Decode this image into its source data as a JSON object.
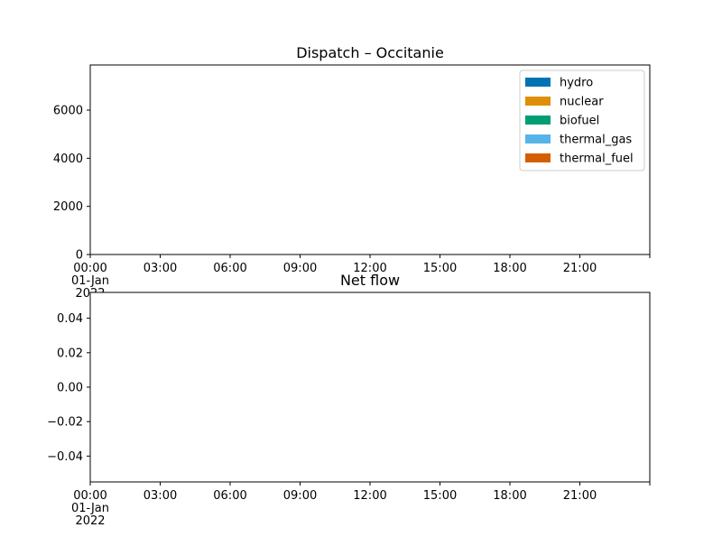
{
  "chart_data": [
    {
      "type": "area",
      "title": "Dispatch – Occitanie",
      "xlabel": "",
      "ylabel": "",
      "x_range": [
        "2022-01-01T00:00",
        "2022-01-02T00:00"
      ],
      "x_ticks": [
        {
          "x": "2022-01-01T00:00",
          "lines": [
            "00:00",
            "01-Jan",
            "2022"
          ]
        },
        {
          "x": "2022-01-01T03:00",
          "lines": [
            "03:00"
          ]
        },
        {
          "x": "2022-01-01T06:00",
          "lines": [
            "06:00"
          ]
        },
        {
          "x": "2022-01-01T09:00",
          "lines": [
            "09:00"
          ]
        },
        {
          "x": "2022-01-01T12:00",
          "lines": [
            "12:00"
          ]
        },
        {
          "x": "2022-01-01T15:00",
          "lines": [
            "15:00"
          ]
        },
        {
          "x": "2022-01-01T18:00",
          "lines": [
            "18:00"
          ]
        },
        {
          "x": "2022-01-01T21:00",
          "lines": [
            "21:00"
          ]
        },
        {
          "x": "2022-01-02T00:00",
          "lines": []
        }
      ],
      "ylim": [
        0,
        7875
      ],
      "y_ticks": [
        0,
        2000,
        4000,
        6000
      ],
      "y_tick_labels": [
        "0",
        "2000",
        "4000",
        "6000"
      ],
      "grid": false,
      "legend_position": "top-right",
      "series": [
        {
          "name": "hydro",
          "color": "#0173b2",
          "values": []
        },
        {
          "name": "nuclear",
          "color": "#de8f05",
          "values": []
        },
        {
          "name": "biofuel",
          "color": "#029e73",
          "values": []
        },
        {
          "name": "thermal_gas",
          "color": "#56b4e9",
          "values": []
        },
        {
          "name": "thermal_fuel",
          "color": "#d55e00",
          "values": []
        }
      ]
    },
    {
      "type": "line",
      "title": "Net flow",
      "xlabel": "",
      "ylabel": "",
      "x_range": [
        "2022-01-01T00:00",
        "2022-01-02T00:00"
      ],
      "x_ticks": [
        {
          "x": "2022-01-01T00:00",
          "lines": [
            "00:00",
            "01-Jan",
            "2022"
          ]
        },
        {
          "x": "2022-01-01T03:00",
          "lines": [
            "03:00"
          ]
        },
        {
          "x": "2022-01-01T06:00",
          "lines": [
            "06:00"
          ]
        },
        {
          "x": "2022-01-01T09:00",
          "lines": [
            "09:00"
          ]
        },
        {
          "x": "2022-01-01T12:00",
          "lines": [
            "12:00"
          ]
        },
        {
          "x": "2022-01-01T15:00",
          "lines": [
            "15:00"
          ]
        },
        {
          "x": "2022-01-01T18:00",
          "lines": [
            "18:00"
          ]
        },
        {
          "x": "2022-01-01T21:00",
          "lines": [
            "21:00"
          ]
        },
        {
          "x": "2022-01-02T00:00",
          "lines": []
        }
      ],
      "ylim": [
        -0.055,
        0.055
      ],
      "y_ticks": [
        -0.04,
        -0.02,
        0.0,
        0.02,
        0.04
      ],
      "y_tick_labels": [
        "−0.04",
        "−0.02",
        "0.00",
        "0.02",
        "0.04"
      ],
      "grid": false,
      "series": []
    }
  ]
}
